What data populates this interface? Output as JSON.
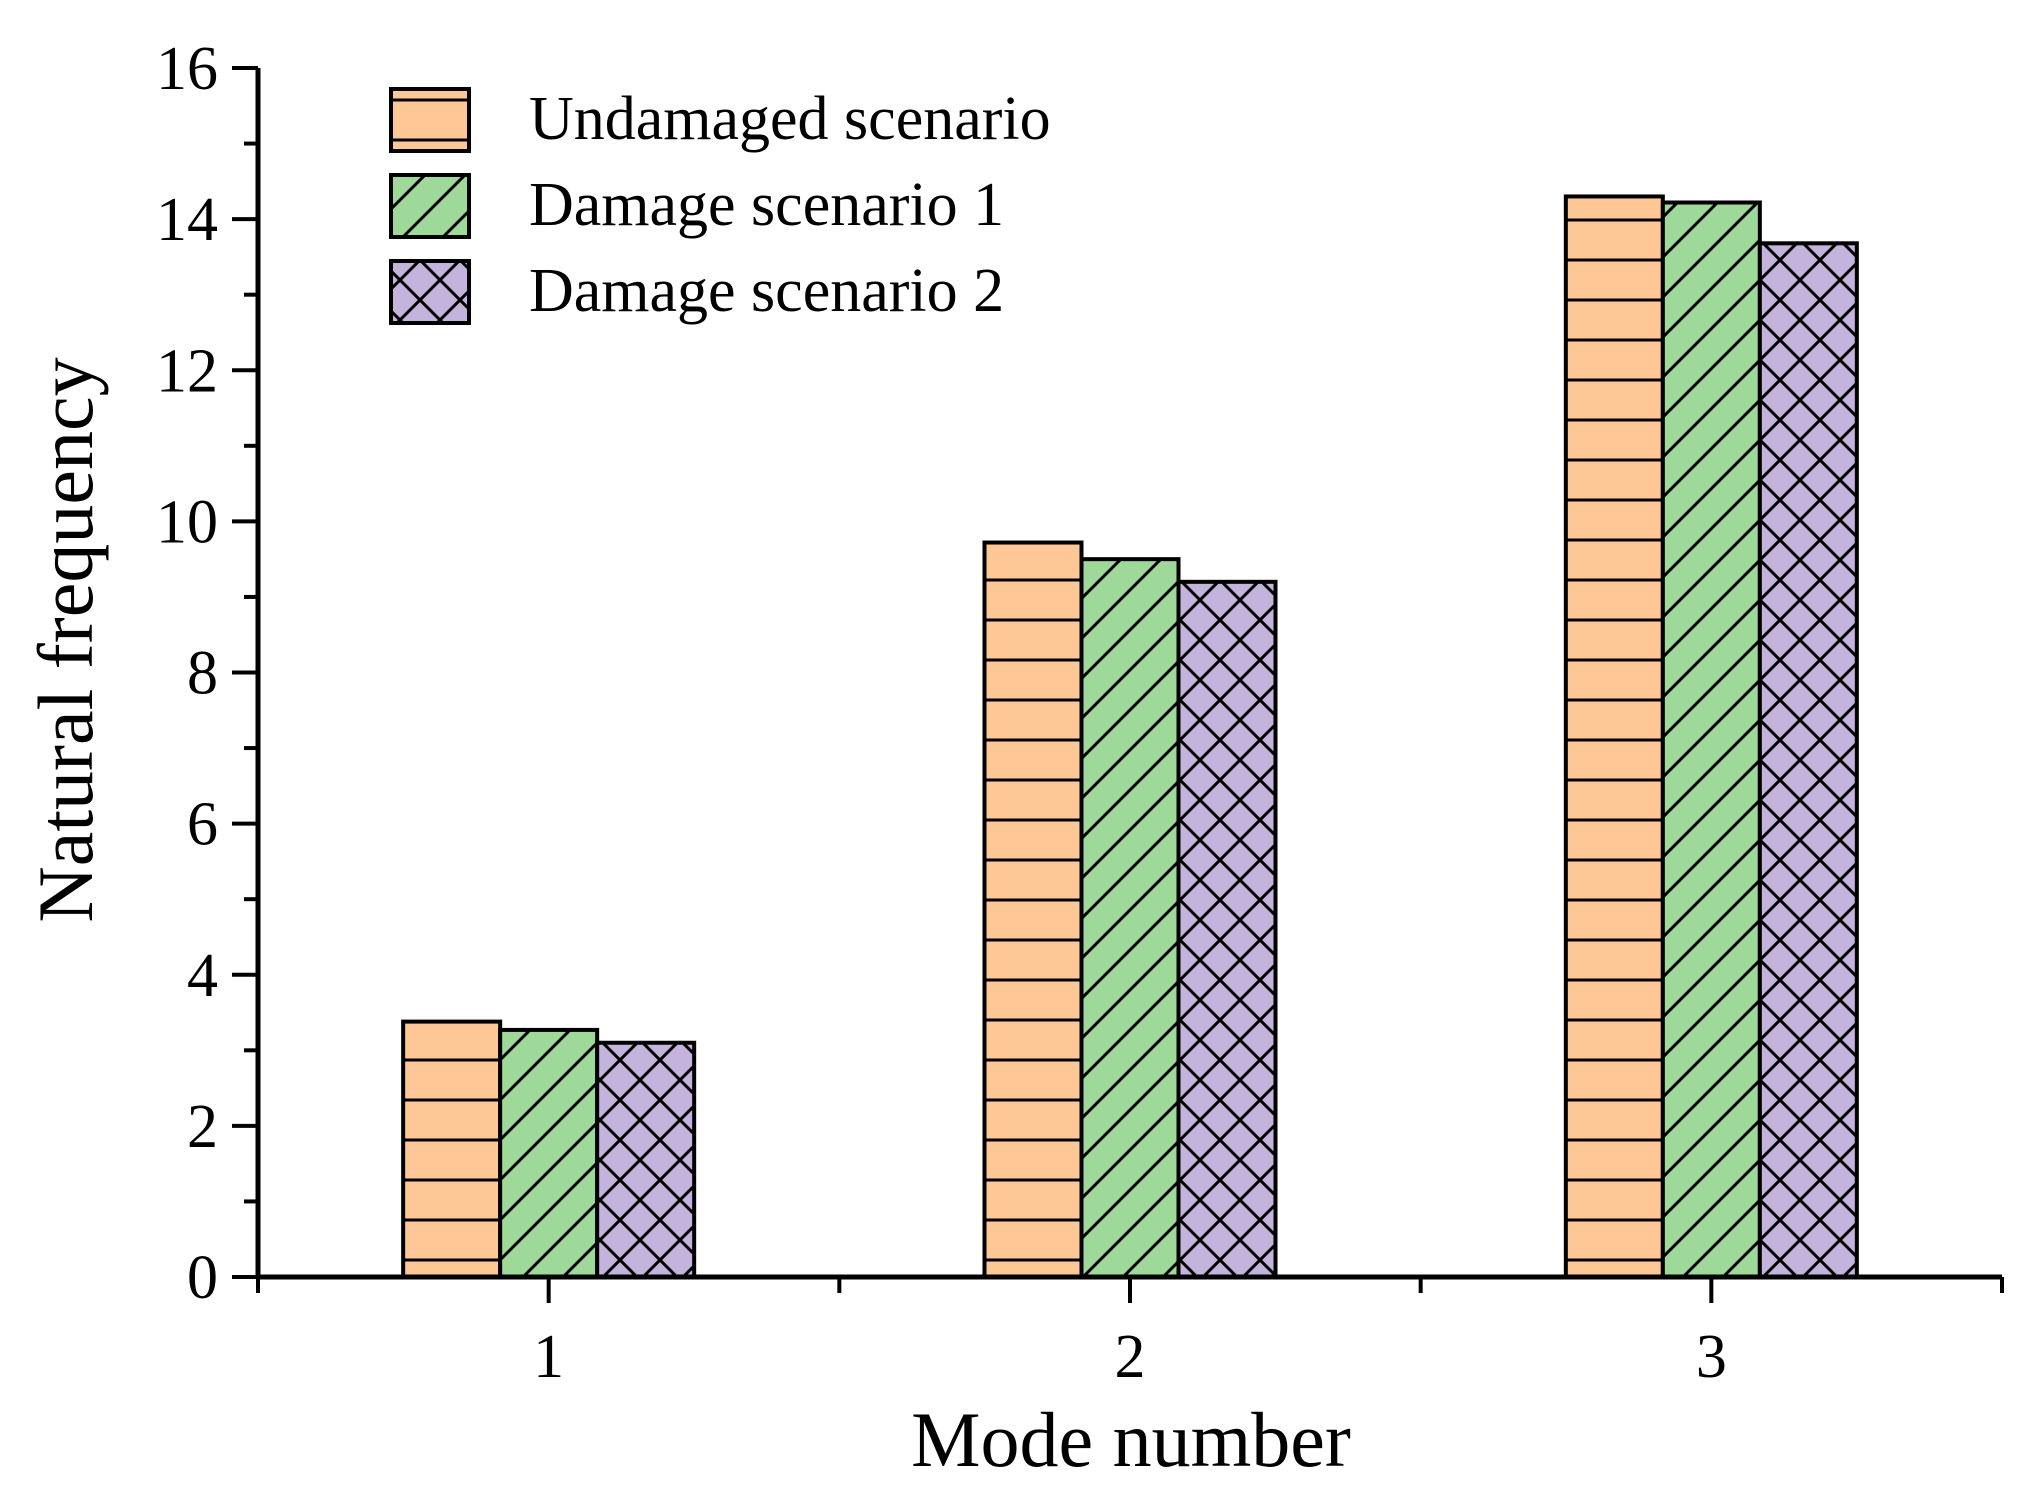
{
  "chart_data": {
    "type": "bar",
    "title": "",
    "xlabel": "Mode number",
    "ylabel": "Natural frequency",
    "categories": [
      "1",
      "2",
      "3"
    ],
    "ylim": [
      0,
      16
    ],
    "yticks": [
      "0",
      "2",
      "4",
      "6",
      "8",
      "10",
      "12",
      "14",
      "16"
    ],
    "legend_position": "top-left",
    "grid": false,
    "series": [
      {
        "name": "Undamaged scenario",
        "values": [
          3.38,
          9.72,
          14.3
        ],
        "color": "#FDC896",
        "pattern": "horizontal-lines"
      },
      {
        "name": "Damage scenario 1",
        "values": [
          3.27,
          9.5,
          14.22
        ],
        "color": "#9FD99A",
        "pattern": "diagonal-lines"
      },
      {
        "name": "Damage scenario 2",
        "values": [
          3.1,
          9.2,
          13.68
        ],
        "color": "#C4B3DC",
        "pattern": "crosshatch"
      }
    ]
  }
}
